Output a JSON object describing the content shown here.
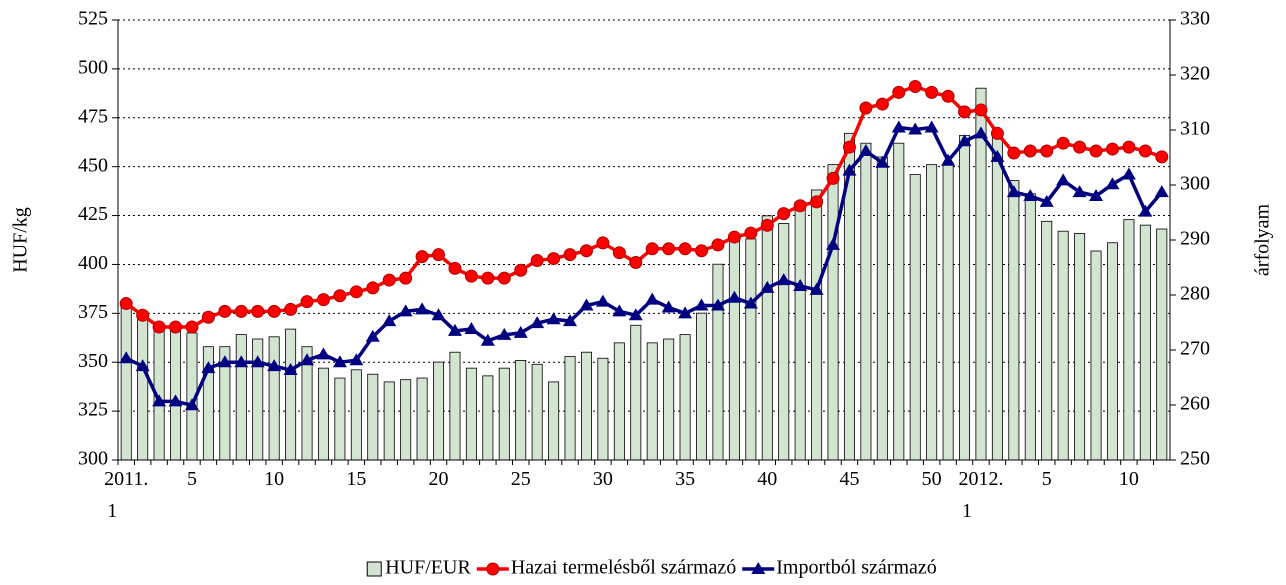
{
  "chart_data": {
    "type": "combo",
    "y_label": "HUF/kg",
    "y2_label": "árfolyam",
    "categories": [
      "2011. 1",
      null,
      null,
      null,
      "5",
      null,
      null,
      null,
      null,
      "10",
      null,
      null,
      null,
      null,
      "15",
      null,
      null,
      null,
      null,
      "20",
      null,
      null,
      null,
      null,
      "25",
      null,
      null,
      null,
      null,
      "30",
      null,
      null,
      null,
      null,
      "35",
      null,
      null,
      null,
      null,
      "40",
      null,
      null,
      null,
      null,
      "45",
      null,
      null,
      null,
      null,
      "50",
      null,
      null,
      "2012. 1",
      null,
      null,
      null,
      "5",
      null,
      null,
      null,
      null,
      "10",
      null,
      null
    ],
    "ylim": [
      300,
      525
    ],
    "yticks": [
      300,
      325,
      350,
      375,
      400,
      425,
      450,
      475,
      500,
      525
    ],
    "y2lim": [
      250,
      330
    ],
    "y2ticks": [
      250,
      260,
      270,
      280,
      290,
      300,
      310,
      320,
      330
    ],
    "grid": true,
    "legend": "bottom",
    "series": [
      {
        "name": "HUF/EUR",
        "type": "bar",
        "axis": "y2",
        "color": "#d3e4d3",
        "values": [
          278.4,
          277.0,
          273.8,
          274.2,
          273.1,
          270.6,
          270.6,
          272.8,
          272.0,
          272.4,
          273.8,
          270.6,
          266.7,
          264.9,
          266.4,
          265.6,
          264.2,
          264.6,
          264.9,
          267.8,
          269.6,
          266.7,
          265.3,
          266.7,
          268.1,
          267.4,
          264.2,
          268.8,
          269.6,
          268.5,
          271.3,
          274.5,
          271.3,
          272.0,
          272.8,
          276.7,
          285.6,
          290.2,
          290.2,
          294.4,
          293.0,
          296.9,
          299.1,
          303.7,
          309.4,
          307.6,
          305.1,
          307.6,
          301.9,
          303.7,
          304.0,
          309.0,
          317.6,
          308.7,
          300.8,
          298.4,
          293.4,
          291.6,
          291.2,
          288.0,
          289.5,
          293.7,
          292.7,
          292.0
        ]
      },
      {
        "name": "Hazai termelésből származó",
        "type": "line",
        "marker": "circle",
        "color": "#ff0000",
        "values": [
          380,
          374,
          368,
          368,
          368,
          373,
          376,
          376,
          376,
          376,
          377,
          381,
          382,
          384,
          386,
          388,
          392,
          393,
          404,
          405,
          398,
          394,
          393,
          393,
          397,
          402,
          403,
          405,
          407,
          411,
          406,
          401,
          408,
          408,
          408,
          407,
          410,
          414,
          416,
          420,
          426,
          430,
          432,
          444,
          460,
          480,
          482,
          488,
          491,
          488,
          486,
          478,
          479,
          467,
          457,
          458,
          458,
          462,
          460,
          458,
          459,
          460,
          458,
          455
        ]
      },
      {
        "name": "Importból származó",
        "type": "line",
        "marker": "triangle",
        "color": "#000080",
        "values": [
          352,
          348,
          330,
          330,
          328,
          347,
          350,
          350,
          350,
          348,
          346,
          351,
          354,
          350,
          351,
          363,
          371,
          376,
          377,
          374,
          366,
          367,
          361,
          364,
          365,
          370,
          372,
          371,
          379,
          381,
          376,
          374,
          382,
          378,
          375,
          379,
          379,
          383,
          380,
          388,
          392,
          389,
          387,
          410,
          448,
          458,
          452,
          470,
          469,
          470,
          453,
          463,
          467,
          455,
          437,
          435,
          432,
          443,
          437,
          435,
          441,
          446,
          427,
          437
        ]
      }
    ]
  }
}
